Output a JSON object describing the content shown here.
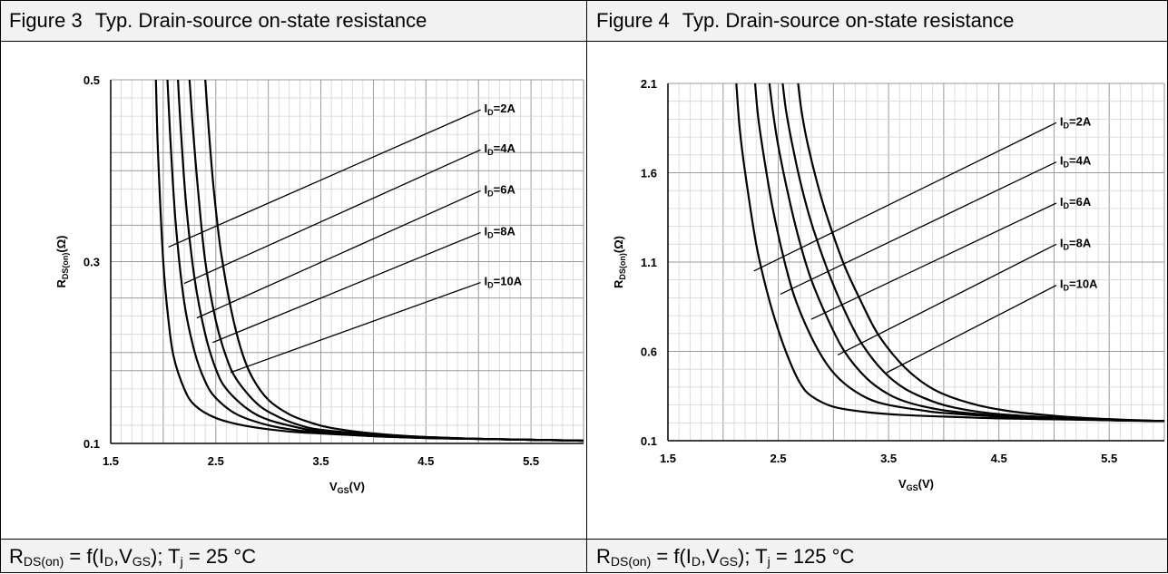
{
  "panels": [
    {
      "figure_number": "Figure 3",
      "title": "Typ. Drain-source on-state resistance",
      "footer": {
        "r": "R",
        "r_sub": "DS(on)",
        "f_open": " = f(I",
        "i_sub": "D",
        "comma": ",V",
        "v_sub": "GS",
        "close": "); T",
        "t_sub": "j",
        "temp": " = 25 °C"
      }
    },
    {
      "figure_number": "Figure 4",
      "title": "Typ. Drain-source on-state resistance",
      "footer": {
        "r": "R",
        "r_sub": "DS(on)",
        "f_open": " = f(I",
        "i_sub": "D",
        "comma": ",V",
        "v_sub": "GS",
        "close": "); T",
        "t_sub": "j",
        "temp": " = 125 °C"
      }
    }
  ],
  "chart_data": [
    {
      "type": "line",
      "title": "Typ. Drain-source on-state resistance",
      "xlabel": {
        "main": "V",
        "sub": "GS",
        "unit": "(V)"
      },
      "ylabel": {
        "main": "R",
        "sub": "DS(on)",
        "unit": "(Ω)"
      },
      "xlim": [
        1.5,
        6.0
      ],
      "ylim": [
        0.1,
        0.5
      ],
      "x_ticks": [
        1.5,
        2.5,
        3.5,
        4.5,
        5.5
      ],
      "x_tick_labels": [
        "1.5",
        "2.5",
        "3.5",
        "4.5",
        "5.5"
      ],
      "y_ticks": [
        0.1,
        0.3,
        0.5
      ],
      "y_tick_labels": [
        "0.1",
        "0.3",
        "0.5"
      ],
      "grid": true,
      "series": [
        {
          "name": "ID=2A",
          "label_main": "I",
          "label_sub": "D",
          "label_val": "=2A",
          "x": [
            1.93,
            1.95,
            2.0,
            2.05,
            2.1,
            2.2,
            2.3,
            2.5,
            2.8,
            3.2,
            3.5,
            4.0,
            4.5,
            5.0,
            5.5,
            6.0
          ],
          "y": [
            0.5,
            0.42,
            0.3,
            0.235,
            0.195,
            0.16,
            0.142,
            0.128,
            0.119,
            0.113,
            0.111,
            0.108,
            0.106,
            0.105,
            0.104,
            0.103
          ]
        },
        {
          "name": "ID=4A",
          "label_main": "I",
          "label_sub": "D",
          "label_val": "=4A",
          "x": [
            2.04,
            2.07,
            2.12,
            2.2,
            2.3,
            2.4,
            2.5,
            2.7,
            3.0,
            3.3,
            3.5,
            4.0,
            4.5,
            5.0,
            5.5,
            6.0
          ],
          "y": [
            0.5,
            0.43,
            0.34,
            0.255,
            0.2,
            0.168,
            0.15,
            0.132,
            0.12,
            0.114,
            0.112,
            0.108,
            0.106,
            0.105,
            0.104,
            0.103
          ]
        },
        {
          "name": "ID=6A",
          "label_main": "I",
          "label_sub": "D",
          "label_val": "=6A",
          "x": [
            2.14,
            2.17,
            2.22,
            2.3,
            2.4,
            2.5,
            2.6,
            2.8,
            3.0,
            3.3,
            3.5,
            4.0,
            4.5,
            5.0,
            5.5,
            6.0
          ],
          "y": [
            0.5,
            0.44,
            0.36,
            0.28,
            0.22,
            0.182,
            0.16,
            0.138,
            0.126,
            0.117,
            0.113,
            0.109,
            0.106,
            0.105,
            0.104,
            0.103
          ]
        },
        {
          "name": "ID=8A",
          "label_main": "I",
          "label_sub": "D",
          "label_val": "=8A",
          "x": [
            2.25,
            2.28,
            2.33,
            2.4,
            2.5,
            2.6,
            2.7,
            2.9,
            3.1,
            3.3,
            3.5,
            4.0,
            4.5,
            5.0,
            5.5,
            6.0
          ],
          "y": [
            0.5,
            0.45,
            0.38,
            0.3,
            0.235,
            0.195,
            0.17,
            0.143,
            0.129,
            0.12,
            0.115,
            0.11,
            0.107,
            0.105,
            0.104,
            0.103
          ]
        },
        {
          "name": "ID=10A",
          "label_main": "I",
          "label_sub": "D",
          "label_val": "=10A",
          "x": [
            2.4,
            2.43,
            2.48,
            2.55,
            2.65,
            2.75,
            2.85,
            3.0,
            3.2,
            3.4,
            3.6,
            4.0,
            4.5,
            5.0,
            5.5,
            6.0
          ],
          "y": [
            0.5,
            0.45,
            0.38,
            0.31,
            0.245,
            0.2,
            0.172,
            0.148,
            0.132,
            0.123,
            0.117,
            0.111,
            0.107,
            0.105,
            0.104,
            0.103
          ]
        }
      ],
      "annotations": [
        {
          "series": "ID=2A",
          "from": [
            2.05,
            0.316
          ],
          "to": [
            5.02,
            0.467
          ]
        },
        {
          "series": "ID=4A",
          "from": [
            2.2,
            0.276
          ],
          "to": [
            5.02,
            0.423
          ]
        },
        {
          "series": "ID=6A",
          "from": [
            2.32,
            0.238
          ],
          "to": [
            5.02,
            0.378
          ]
        },
        {
          "series": "ID=8A",
          "from": [
            2.47,
            0.211
          ],
          "to": [
            5.02,
            0.332
          ]
        },
        {
          "series": "ID=10A",
          "from": [
            2.64,
            0.178
          ],
          "to": [
            5.02,
            0.277
          ]
        }
      ]
    },
    {
      "type": "line",
      "title": "Typ. Drain-source on-state resistance",
      "xlabel": {
        "main": "V",
        "sub": "GS",
        "unit": "(V)"
      },
      "ylabel": {
        "main": "R",
        "sub": "DS(on)",
        "unit": "(Ω)"
      },
      "xlim": [
        1.5,
        6.0
      ],
      "ylim": [
        0.1,
        2.1
      ],
      "x_ticks": [
        1.5,
        2.5,
        3.5,
        4.5,
        5.5
      ],
      "x_tick_labels": [
        "1.5",
        "2.5",
        "3.5",
        "4.5",
        "5.5"
      ],
      "y_ticks": [
        0.1,
        0.6,
        1.1,
        1.6,
        2.1
      ],
      "y_tick_labels": [
        "0.1",
        "0.6",
        "1.1",
        "1.6",
        "2.1"
      ],
      "grid": true,
      "series": [
        {
          "name": "ID=2A",
          "label_main": "I",
          "label_sub": "D",
          "label_val": "=2A",
          "x": [
            2.12,
            2.15,
            2.2,
            2.3,
            2.4,
            2.5,
            2.6,
            2.7,
            2.8,
            3.0,
            3.3,
            3.6,
            4.0,
            4.5,
            5.0,
            5.5,
            6.0
          ],
          "y": [
            2.1,
            1.85,
            1.6,
            1.2,
            0.93,
            0.72,
            0.55,
            0.42,
            0.35,
            0.29,
            0.26,
            0.245,
            0.235,
            0.225,
            0.22,
            0.215,
            0.21
          ]
        },
        {
          "name": "ID=4A",
          "label_main": "I",
          "label_sub": "D",
          "label_val": "=4A",
          "x": [
            2.29,
            2.32,
            2.38,
            2.45,
            2.55,
            2.65,
            2.8,
            2.95,
            3.1,
            3.3,
            3.5,
            3.8,
            4.0,
            4.5,
            5.0,
            5.5,
            6.0
          ],
          "y": [
            2.1,
            1.9,
            1.65,
            1.4,
            1.12,
            0.9,
            0.68,
            0.52,
            0.42,
            0.34,
            0.3,
            0.27,
            0.255,
            0.235,
            0.225,
            0.215,
            0.21
          ]
        },
        {
          "name": "ID=6A",
          "label_main": "I",
          "label_sub": "D",
          "label_val": "=6A",
          "x": [
            2.42,
            2.45,
            2.5,
            2.6,
            2.7,
            2.8,
            2.95,
            3.1,
            3.3,
            3.5,
            3.7,
            4.0,
            4.3,
            4.6,
            5.0,
            5.5,
            6.0
          ],
          "y": [
            2.1,
            1.95,
            1.75,
            1.45,
            1.2,
            1.0,
            0.78,
            0.6,
            0.45,
            0.36,
            0.31,
            0.27,
            0.25,
            0.235,
            0.225,
            0.215,
            0.21
          ]
        },
        {
          "name": "ID=8A",
          "label_main": "I",
          "label_sub": "D",
          "label_val": "=8A",
          "x": [
            2.54,
            2.57,
            2.62,
            2.7,
            2.8,
            2.95,
            3.1,
            3.25,
            3.45,
            3.65,
            3.9,
            4.1,
            4.4,
            4.7,
            5.0,
            5.5,
            6.0
          ],
          "y": [
            2.1,
            1.95,
            1.78,
            1.55,
            1.32,
            1.05,
            0.83,
            0.65,
            0.49,
            0.39,
            0.32,
            0.285,
            0.255,
            0.24,
            0.23,
            0.215,
            0.21
          ]
        },
        {
          "name": "ID=10A",
          "label_main": "I",
          "label_sub": "D",
          "label_val": "=10A",
          "x": [
            2.68,
            2.71,
            2.76,
            2.85,
            2.95,
            3.1,
            3.25,
            3.4,
            3.6,
            3.8,
            4.0,
            4.3,
            4.6,
            4.9,
            5.2,
            5.6,
            6.0
          ],
          "y": [
            2.1,
            1.95,
            1.78,
            1.55,
            1.34,
            1.08,
            0.88,
            0.7,
            0.54,
            0.43,
            0.36,
            0.3,
            0.265,
            0.245,
            0.23,
            0.218,
            0.21
          ]
        }
      ],
      "annotations": [
        {
          "series": "ID=2A",
          "from": [
            2.28,
            1.05
          ],
          "to": [
            5.02,
            1.88
          ]
        },
        {
          "series": "ID=4A",
          "from": [
            2.52,
            0.92
          ],
          "to": [
            5.02,
            1.66
          ]
        },
        {
          "series": "ID=6A",
          "from": [
            2.8,
            0.78
          ],
          "to": [
            5.02,
            1.43
          ]
        },
        {
          "series": "ID=8A",
          "from": [
            3.04,
            0.58
          ],
          "to": [
            5.02,
            1.2
          ]
        },
        {
          "series": "ID=10A",
          "from": [
            3.48,
            0.48
          ],
          "to": [
            5.02,
            0.97
          ]
        }
      ]
    }
  ]
}
